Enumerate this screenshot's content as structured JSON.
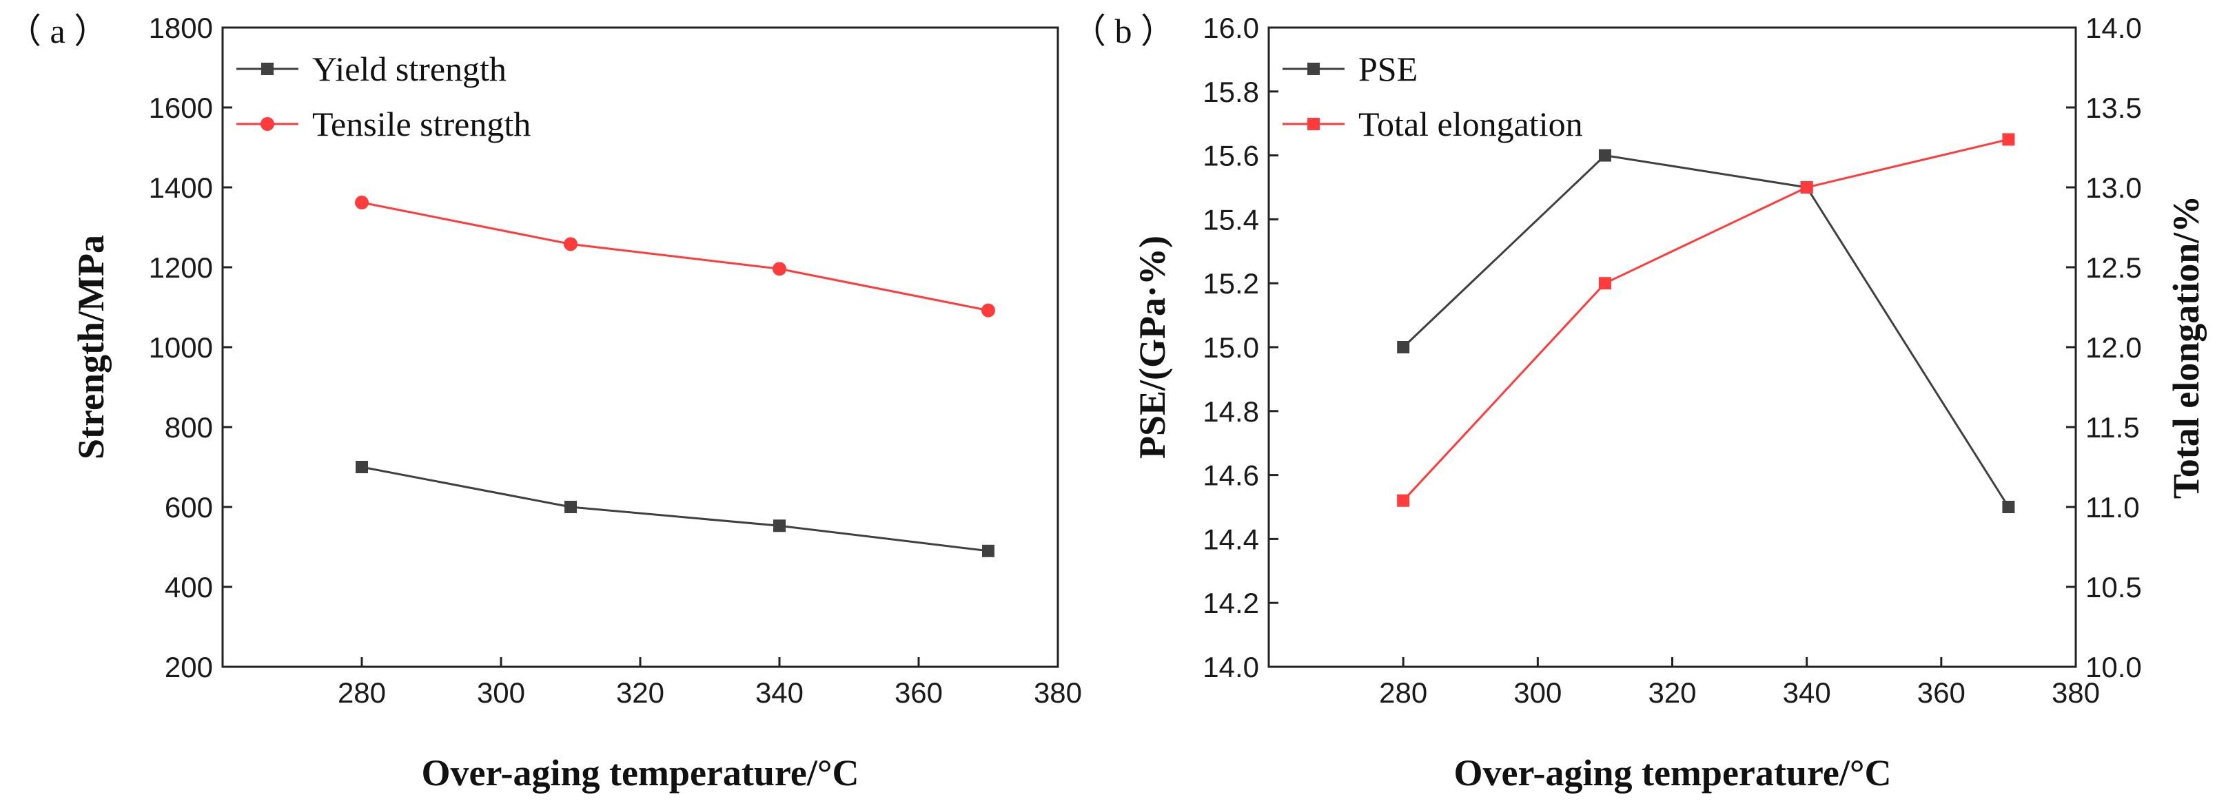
{
  "chart_data": [
    {
      "type": "line",
      "panel_label": "（ a ）",
      "title": "",
      "xlabel": "Over-aging temperature/°C",
      "ylabel": "Strength/MPa",
      "xlim": [
        260,
        380
      ],
      "ylim": [
        200,
        1800
      ],
      "xticks": [
        280,
        300,
        320,
        340,
        360,
        380
      ],
      "yticks": [
        200,
        400,
        600,
        800,
        1000,
        1200,
        1400,
        1600,
        1800
      ],
      "x": [
        280,
        310,
        340,
        370
      ],
      "legend_position": "top-left",
      "series": [
        {
          "name": "Yield strength",
          "values": [
            700,
            600,
            553,
            490
          ],
          "color": "#404040",
          "marker": "square",
          "axis": "left"
        },
        {
          "name": "Tensile strength",
          "values": [
            1362,
            1258,
            1196,
            1092
          ],
          "color": "#ff3b3b",
          "marker": "circle",
          "axis": "left"
        }
      ]
    },
    {
      "type": "line",
      "panel_label": "（ b ）",
      "title": "",
      "xlabel": "Over-aging temperature/°C",
      "ylabel": "PSE/(GPa·%)",
      "y2label": "Total elongation/%",
      "xlim": [
        260,
        380
      ],
      "ylim": [
        14.0,
        16.0
      ],
      "y2lim": [
        10.0,
        14.0
      ],
      "xticks": [
        280,
        300,
        320,
        340,
        360,
        380
      ],
      "yticks": [
        "14.0",
        "14.2",
        "14.4",
        "14.6",
        "14.8",
        "15.0",
        "15.2",
        "15.4",
        "15.6",
        "15.8",
        "16.0"
      ],
      "y2ticks": [
        "10.0",
        "10.5",
        "11.0",
        "11.5",
        "12.0",
        "12.5",
        "13.0",
        "13.5",
        "14.0"
      ],
      "x": [
        280,
        310,
        340,
        370
      ],
      "legend_position": "top-left",
      "series": [
        {
          "name": "PSE",
          "values": [
            15.0,
            15.6,
            15.5,
            14.5
          ],
          "color": "#404040",
          "marker": "square",
          "axis": "left"
        },
        {
          "name": "Total elongation",
          "values": [
            11.04,
            12.4,
            13.0,
            13.3
          ],
          "color": "#ff3b3b",
          "marker": "square",
          "axis": "right"
        }
      ]
    }
  ]
}
